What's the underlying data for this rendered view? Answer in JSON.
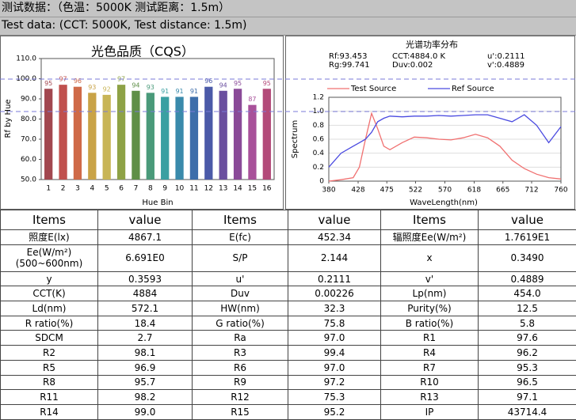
{
  "header": {
    "line1": "测试数据：（色温：5000K 测试距离：1.5m）",
    "line2": "Test data: (CCT: 5000K, Test distance: 1.5m)"
  },
  "chart_data": [
    {
      "type": "bar",
      "title": "光色品质（CQS）",
      "y_label": "Rf by Hue",
      "x_label": "Hue Bin",
      "categories": [
        "1",
        "2",
        "3",
        "4",
        "5",
        "6",
        "7",
        "8",
        "9",
        "10",
        "11",
        "12",
        "13",
        "14",
        "15",
        "16"
      ],
      "values": [
        95,
        97,
        96,
        93,
        92,
        97,
        94,
        93,
        91,
        91,
        91,
        96,
        94,
        95,
        87,
        95
      ],
      "colors": [
        "#a2474f",
        "#c0504d",
        "#cf6a48",
        "#c9a347",
        "#c8b556",
        "#8ea246",
        "#5f8f47",
        "#4a9a7a",
        "#3aa0a2",
        "#3a8aab",
        "#3d6eaa",
        "#4b5aa8",
        "#6a4f9f",
        "#8a4a98",
        "#a8519a",
        "#b34a79"
      ],
      "ylim": [
        50,
        110
      ],
      "yticks": [
        {
          "value": 50,
          "label": "50.0"
        },
        {
          "value": 60,
          "label": "60.0"
        },
        {
          "value": 70,
          "label": "70.0"
        },
        {
          "value": 80,
          "label": "80.0"
        },
        {
          "value": 90,
          "label": "90.0"
        },
        {
          "value": 100,
          "label": "100.0"
        },
        {
          "value": 110,
          "label": "110.0"
        }
      ]
    },
    {
      "type": "line",
      "title": "光谱功率分布",
      "y_label": "Spectrum",
      "x_label": "WaveLength(nm)",
      "annotations": [
        "Rf:93.453",
        "CCT:4884.0 K",
        "u':0.2111",
        "Rg:99.741",
        "Duv:0.002",
        "v':0.4889"
      ],
      "x": [
        380,
        400,
        420,
        430,
        440,
        450,
        460,
        470,
        480,
        500,
        520,
        540,
        560,
        580,
        600,
        620,
        640,
        660,
        680,
        700,
        720,
        740,
        760
      ],
      "series": [
        {
          "name": "Test Source",
          "color": "#f07070",
          "values": [
            0,
            0.02,
            0.05,
            0.2,
            0.6,
            0.97,
            0.75,
            0.5,
            0.45,
            0.55,
            0.63,
            0.62,
            0.6,
            0.59,
            0.62,
            0.67,
            0.62,
            0.5,
            0.3,
            0.18,
            0.1,
            0.05,
            0.03
          ]
        },
        {
          "name": "Ref Source",
          "color": "#4a4ae0",
          "values": [
            0.2,
            0.4,
            0.5,
            0.55,
            0.6,
            0.7,
            0.85,
            0.9,
            0.93,
            0.92,
            0.93,
            0.93,
            0.94,
            0.93,
            0.94,
            0.95,
            0.95,
            0.9,
            0.85,
            0.95,
            0.8,
            0.55,
            0.78
          ]
        }
      ],
      "xlim": [
        380,
        760
      ],
      "xticks": [
        380,
        428,
        475,
        522,
        570,
        618,
        665,
        712,
        760
      ],
      "ylim": [
        0,
        1.2
      ],
      "yticks": [
        0,
        0.2,
        0.4,
        0.6,
        0.8,
        {
          "value": 1,
          "label": "1.0"
        },
        1.2
      ],
      "grid": true
    }
  ],
  "table": {
    "header": [
      "Items",
      "value",
      "Items",
      "value",
      "Items",
      "value"
    ],
    "rows": [
      [
        "照度E(lx)",
        "4867.1",
        "E(fc)",
        "452.34",
        "辐照度Ee(W/m²)",
        "1.7619E1"
      ],
      [
        "Ee(W/m²)(500~600nm)",
        "6.691E0",
        "S/P",
        "2.144",
        "x",
        "0.3490"
      ],
      [
        "y",
        "0.3593",
        "u'",
        "0.2111",
        "v'",
        "0.4889"
      ],
      [
        "CCT(K)",
        "4884",
        "Duv",
        "0.00226",
        "Lp(nm)",
        "454.0"
      ],
      [
        "Ld(nm)",
        "572.1",
        "HW(nm)",
        "32.3",
        "Purity(%)",
        "12.5"
      ],
      [
        "R ratio(%)",
        "18.4",
        "G ratio(%)",
        "75.8",
        "B ratio(%)",
        "5.8"
      ],
      [
        "SDCM",
        "2.7",
        "Ra",
        "97.0",
        "R1",
        "97.6"
      ],
      [
        "R2",
        "98.1",
        "R3",
        "99.4",
        "R4",
        "96.2"
      ],
      [
        "R5",
        "96.9",
        "R6",
        "97.0",
        "R7",
        "95.3"
      ],
      [
        "R8",
        "95.7",
        "R9",
        "97.2",
        "R10",
        "96.5"
      ],
      [
        "R11",
        "98.2",
        "R12",
        "75.3",
        "R13",
        "97.1"
      ],
      [
        "R14",
        "99.0",
        "R15",
        "95.2",
        "IP",
        "43714.4"
      ]
    ]
  }
}
